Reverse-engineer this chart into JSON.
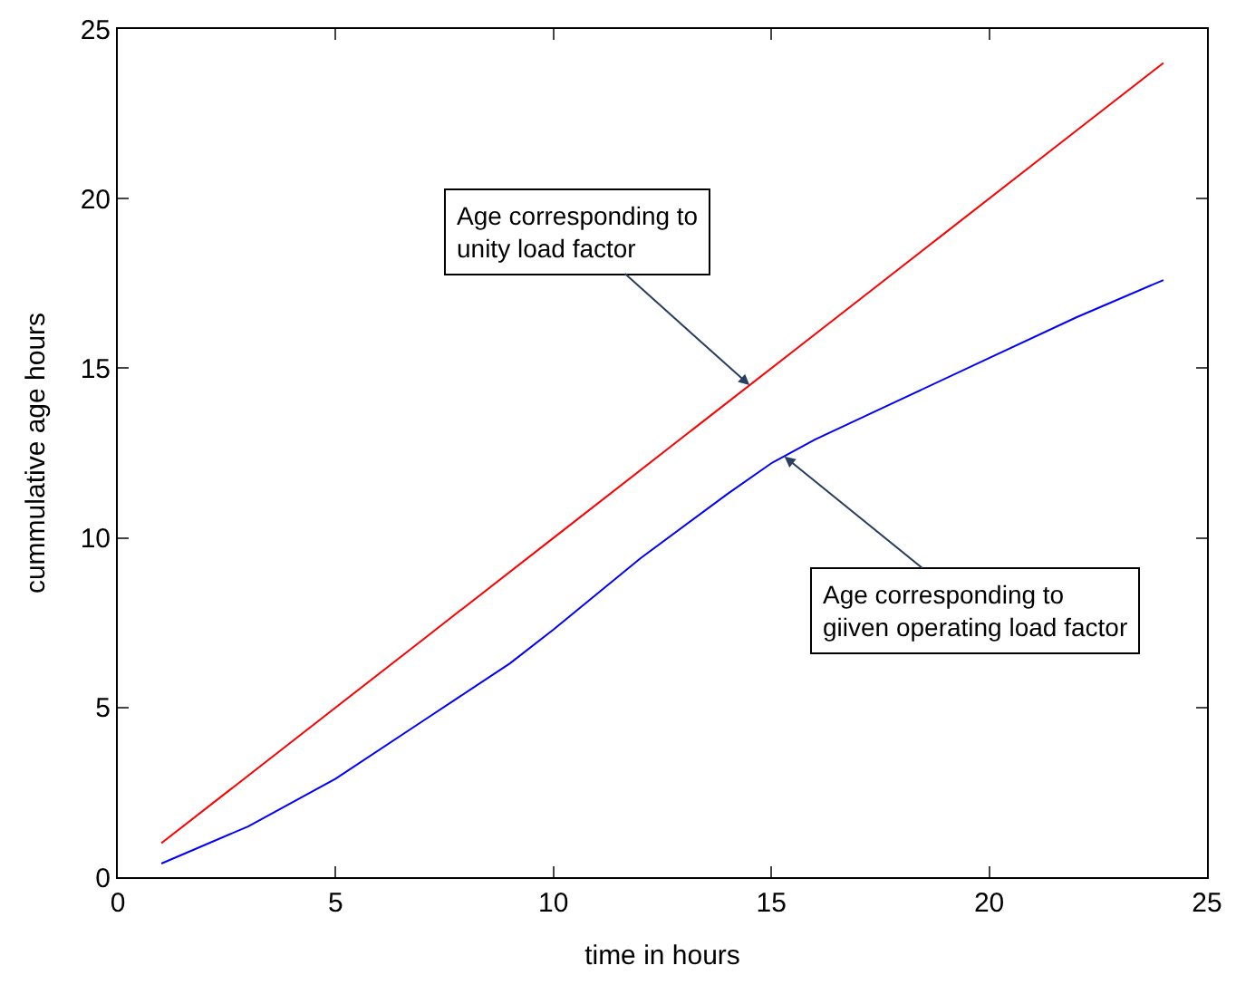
{
  "chart_data": {
    "type": "line",
    "xlabel": "time in hours",
    "ylabel": "cummulative age hours",
    "xlim": [
      0,
      25
    ],
    "ylim": [
      0,
      25
    ],
    "xticks": [
      0,
      5,
      10,
      15,
      20,
      25
    ],
    "yticks": [
      0,
      5,
      10,
      15,
      20,
      25
    ],
    "series": [
      {
        "color": "#ff0000",
        "x": [
          1,
          4,
          7,
          10,
          13,
          16,
          19,
          22,
          24
        ],
        "values": [
          1,
          4,
          7,
          10,
          13,
          16,
          19,
          22,
          24
        ]
      },
      {
        "color": "#0000ff",
        "x": [
          1,
          3,
          5,
          7,
          9,
          10,
          12,
          14,
          15,
          16,
          18,
          20,
          22,
          24
        ],
        "values": [
          0.4,
          1.5,
          2.9,
          4.6,
          6.3,
          7.3,
          9.4,
          11.3,
          12.2,
          12.9,
          14.1,
          15.3,
          16.5,
          17.6
        ]
      }
    ],
    "annotations": [
      {
        "text": "Age corresponding to\nunity load factor",
        "x": 14.5,
        "y": 14.5
      },
      {
        "text": "Age corresponding to\ngiiven operating load factor",
        "x": 15.3,
        "y": 12.4
      }
    ]
  }
}
